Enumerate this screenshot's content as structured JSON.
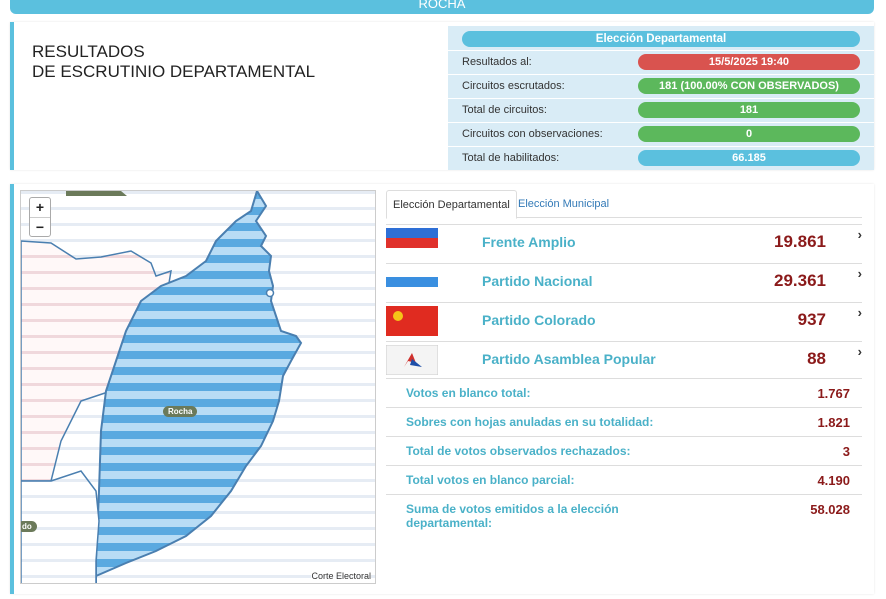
{
  "header": {
    "title": "ROCHA"
  },
  "page_title": {
    "line1": "RESULTADOS",
    "line2": "DE ESCRUTINIO DEPARTAMENTAL"
  },
  "summary": {
    "heading": "Elección Departamental",
    "rows": [
      {
        "label": "Resultados al:",
        "value": "15/5/2025 19:40",
        "color": "#d9534f"
      },
      {
        "label": "Circuitos escrutados:",
        "value": "181 (100.00% CON OBSERVADOS)",
        "color": "#5cb85c"
      },
      {
        "label": "Total de circuitos:",
        "value": "181",
        "color": "#5cb85c"
      },
      {
        "label": "Circuitos con observaciones:",
        "value": "0",
        "color": "#5cb85c"
      },
      {
        "label": "Total de habilitados:",
        "value": "66.185",
        "color": "#5bc0de"
      }
    ]
  },
  "map": {
    "zoom_in": "+",
    "zoom_out": "−",
    "label_main": "Rocha",
    "label_side": "do",
    "attribution": "Corte Electoral"
  },
  "tabs": [
    {
      "label": "Elección Departamental",
      "active": true
    },
    {
      "label": "Elección Municipal",
      "active": false
    }
  ],
  "parties": [
    {
      "name": "Frente Amplio",
      "votes": "19.861",
      "flag": "frente-amplio-flag"
    },
    {
      "name": "Partido Nacional",
      "votes": "29.361",
      "flag": "partido-nacional-flag"
    },
    {
      "name": "Partido Colorado",
      "votes": "937",
      "flag": "partido-colorado-flag"
    },
    {
      "name": "Partido Asamblea Popular",
      "votes": "88",
      "flag": "asamblea-popular-logo"
    }
  ],
  "stats": [
    {
      "label": "Votos en blanco total:",
      "value": "1.767"
    },
    {
      "label": "Sobres con hojas anuladas en su totalidad:",
      "value": "1.821"
    },
    {
      "label": "Total de votos observados rechazados:",
      "value": "3"
    },
    {
      "label": "Total votos en blanco parcial:",
      "value": "4.190"
    },
    {
      "label": "Suma de votos emitidos a la elección departamental:",
      "value": "58.028"
    }
  ],
  "chevron": "›",
  "colors": {
    "accent": "#5bc0de",
    "value_red": "#8b1a1a",
    "label_blue": "#4ab1c8"
  }
}
